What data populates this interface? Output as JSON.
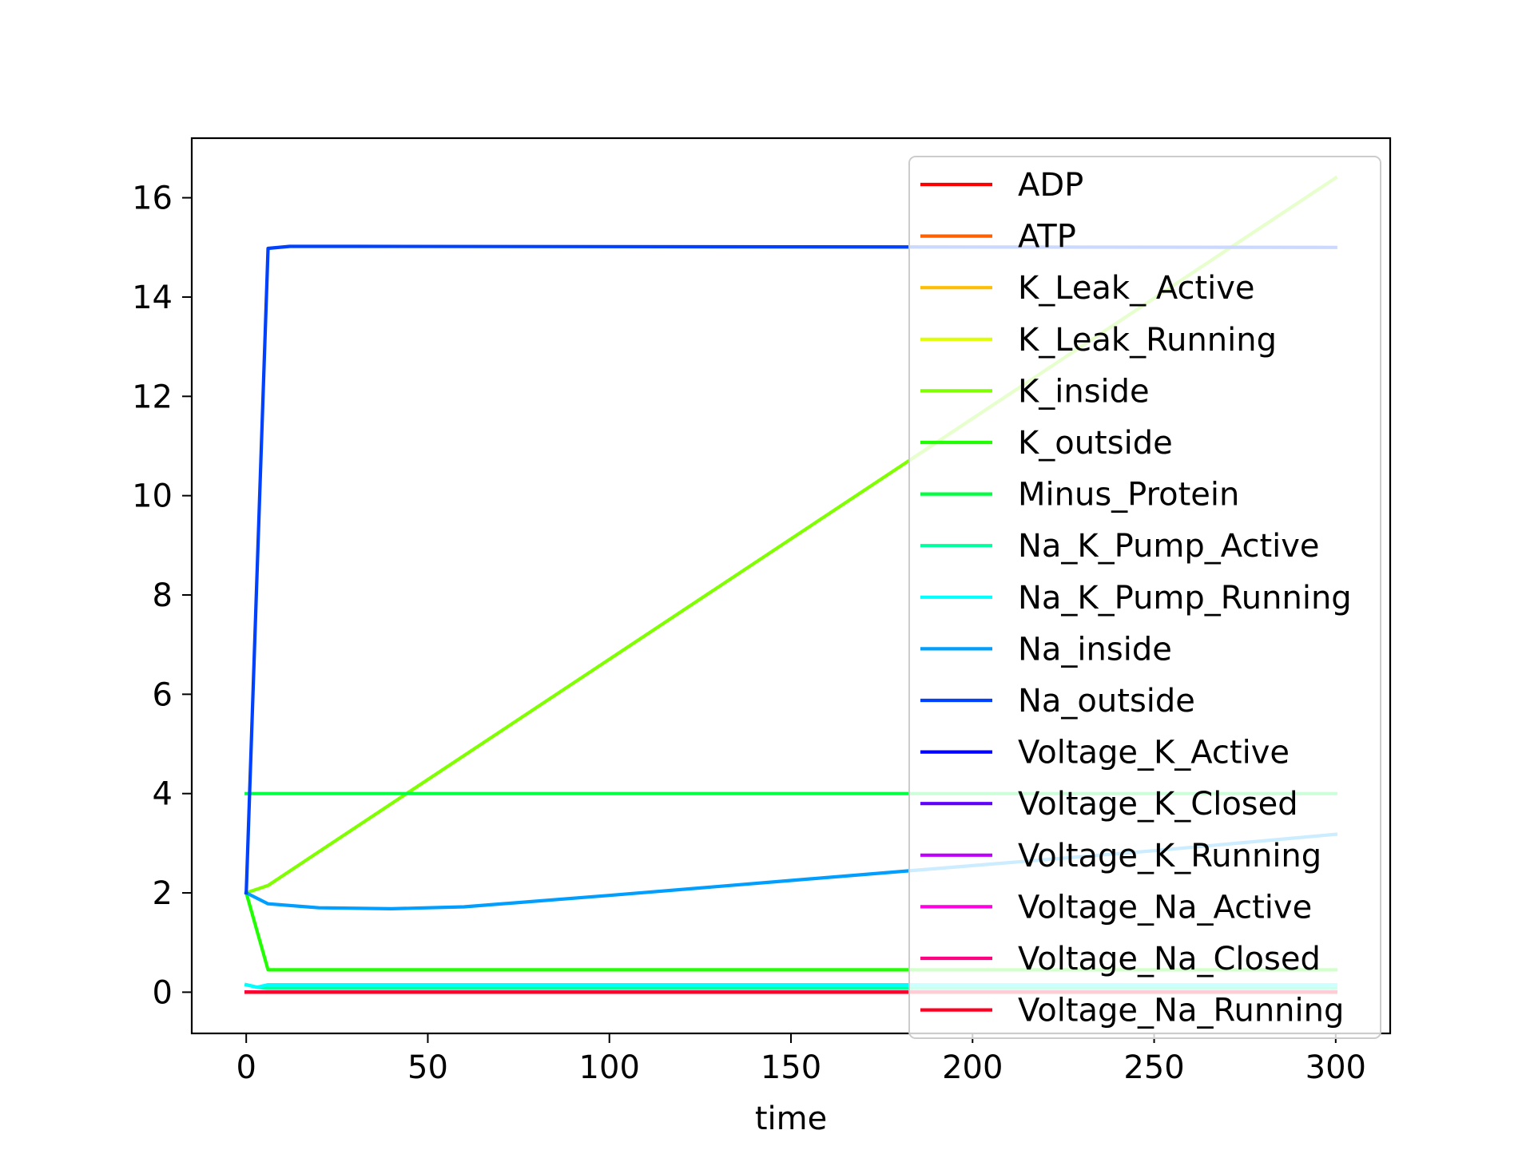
{
  "chart_data": {
    "type": "line",
    "title": "",
    "xlabel": "time",
    "ylabel": "",
    "xlim": [
      -15,
      315
    ],
    "ylim": [
      -0.83,
      17.2
    ],
    "xticks": [
      0,
      50,
      100,
      150,
      200,
      250,
      300
    ],
    "yticks": [
      0,
      2,
      4,
      6,
      8,
      10,
      12,
      14,
      16
    ],
    "grid": false,
    "legend_position": "top-right",
    "series": [
      {
        "name": "ADP",
        "color": "#ff0000",
        "x": [
          0,
          300
        ],
        "y": [
          0,
          0
        ]
      },
      {
        "name": "ATP",
        "color": "#ff6000",
        "x": [
          0,
          300
        ],
        "y": [
          0,
          0
        ]
      },
      {
        "name": "K_Leak_ Active",
        "color": "#ffbf00",
        "x": [
          0,
          300
        ],
        "y": [
          0,
          0
        ]
      },
      {
        "name": "K_Leak_Running",
        "color": "#dfff00",
        "x": [
          0,
          300
        ],
        "y": [
          0,
          0
        ]
      },
      {
        "name": "K_inside",
        "color": "#80ff00",
        "x": [
          0,
          6,
          300
        ],
        "y": [
          2,
          2.15,
          16.4
        ]
      },
      {
        "name": "K_outside",
        "color": "#20ff00",
        "x": [
          0,
          6,
          300
        ],
        "y": [
          2,
          0.45,
          0.45
        ]
      },
      {
        "name": "Minus_Protein",
        "color": "#00ff40",
        "x": [
          0,
          300
        ],
        "y": [
          4,
          4
        ]
      },
      {
        "name": "Na_K_Pump_Active",
        "color": "#00ff9f",
        "x": [
          0,
          3,
          6,
          300
        ],
        "y": [
          0.15,
          0.1,
          0.08,
          0.08
        ]
      },
      {
        "name": "Na_K_Pump_Running",
        "color": "#00ffff",
        "x": [
          0,
          3,
          6,
          300
        ],
        "y": [
          0.15,
          0.1,
          0.15,
          0.15
        ]
      },
      {
        "name": "Na_inside",
        "color": "#009fff",
        "x": [
          0,
          6,
          20,
          40,
          60,
          100,
          150,
          200,
          250,
          300
        ],
        "y": [
          2,
          1.78,
          1.7,
          1.68,
          1.72,
          1.95,
          2.25,
          2.55,
          2.85,
          3.18
        ]
      },
      {
        "name": "Na_outside",
        "color": "#0040ff",
        "x": [
          0,
          6,
          12,
          30,
          300
        ],
        "y": [
          2,
          14.98,
          15.02,
          15.02,
          15.0
        ]
      },
      {
        "name": "Voltage_K_Active",
        "color": "#0000ff",
        "x": [
          0,
          300
        ],
        "y": [
          0,
          0
        ]
      },
      {
        "name": "Voltage_K_Closed",
        "color": "#6000ff",
        "x": [
          0,
          300
        ],
        "y": [
          0,
          0
        ]
      },
      {
        "name": "Voltage_K_Running",
        "color": "#bf00ff",
        "x": [
          0,
          300
        ],
        "y": [
          0,
          0
        ]
      },
      {
        "name": "Voltage_Na_Active",
        "color": "#ff00df",
        "x": [
          0,
          300
        ],
        "y": [
          0,
          0
        ]
      },
      {
        "name": "Voltage_Na_Closed",
        "color": "#ff0080",
        "x": [
          0,
          300
        ],
        "y": [
          0,
          0
        ]
      },
      {
        "name": "Voltage_Na_Running",
        "color": "#ff0020",
        "x": [
          0,
          300
        ],
        "y": [
          0,
          0
        ]
      }
    ]
  }
}
